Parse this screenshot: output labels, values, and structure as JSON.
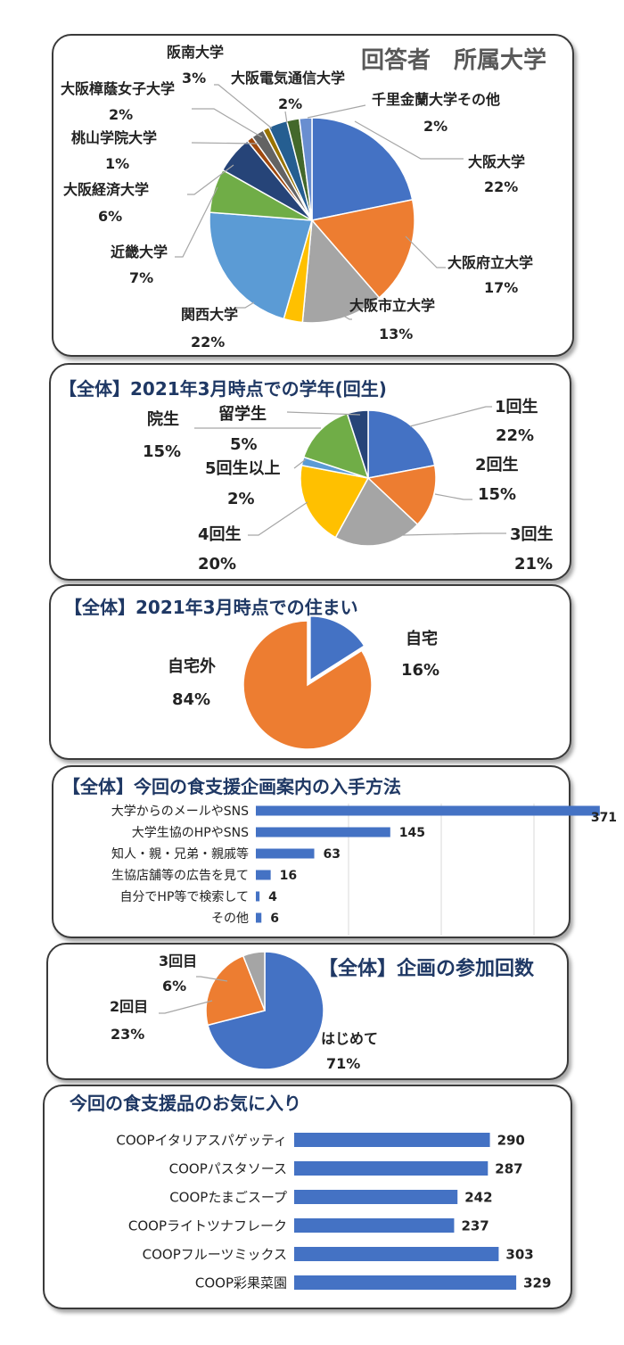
{
  "charts": [
    {
      "type": "pie",
      "title": "回答者　所属大学",
      "colors": [
        "#4472c4",
        "#ed7d31",
        "#a5a5a5",
        "#ffc000",
        "#5b9bd5",
        "#70ad47",
        "#264478",
        "#9e480e",
        "#636363",
        "#997300",
        "#255e91",
        "#43682b",
        "#698ed0"
      ],
      "labels": [
        "大阪大学",
        "大阪府立大学",
        "大阪市立大学",
        "",
        "関西大学",
        "近畿大学",
        "大阪経済大学",
        "桃山学院大学",
        "大阪樟蔭女子大学",
        "",
        "阪南大学",
        "大阪電気通信大学",
        "千里金蘭大学その他"
      ],
      "values": [
        22,
        17,
        13,
        3,
        22,
        7,
        6,
        1,
        2,
        1,
        3,
        2,
        2
      ],
      "pct": [
        "22%",
        "17%",
        "13%",
        "",
        "22%",
        "7%",
        "6%",
        "1%",
        "2%",
        "",
        "3%",
        "2%",
        "2%"
      ]
    },
    {
      "type": "pie",
      "title": "【全体】2021年3月時点での学年(回生)",
      "colors": [
        "#4472c4",
        "#ed7d31",
        "#a5a5a5",
        "#ffc000",
        "#5b9bd5",
        "#70ad47",
        "#264478"
      ],
      "labels": [
        "1回生",
        "2回生",
        "3回生",
        "4回生",
        "5回生以上",
        "院生",
        "留学生"
      ],
      "values": [
        22,
        15,
        21,
        20,
        2,
        15,
        5
      ],
      "pct": [
        "22%",
        "15%",
        "21%",
        "20%",
        "2%",
        "15%",
        "5%"
      ]
    },
    {
      "type": "pie",
      "title": "【全体】2021年3月時点での住まい",
      "colors": [
        "#4472c4",
        "#ed7d31"
      ],
      "labels": [
        "自宅",
        "自宅外"
      ],
      "values": [
        16,
        84
      ],
      "pct": [
        "16%",
        "84%"
      ]
    },
    {
      "type": "bar",
      "title": "【全体】今回の食支援企画案内の入手方法",
      "color": "#4472c4",
      "categories": [
        "大学からのメールやSNS",
        "大学生協のHPやSNS",
        "知人・親・兄弟・親戚等",
        "生協店舗等の広告を見て",
        "自分でHP等で検索して",
        "その他"
      ],
      "values": [
        371,
        145,
        63,
        16,
        4,
        6
      ],
      "xlim": [
        0,
        400
      ]
    },
    {
      "type": "pie",
      "title": "【全体】企画の参加回数",
      "colors": [
        "#4472c4",
        "#ed7d31",
        "#a5a5a5"
      ],
      "labels": [
        "はじめて",
        "2回目",
        "3回目"
      ],
      "values": [
        71,
        23,
        6
      ],
      "pct": [
        "71%",
        "23%",
        "6%"
      ]
    },
    {
      "type": "bar",
      "title": "今回の食支援品のお気に入り",
      "color": "#4472c4",
      "categories": [
        "COOPイタリアスパゲッティ",
        "COOPパスタソース",
        "COOPたまごスープ",
        "COOPライトツナフレーク",
        "COOPフルーツミックス",
        "COOP彩果菜園"
      ],
      "values": [
        290,
        287,
        242,
        237,
        303,
        329
      ],
      "xlim": [
        0,
        350
      ]
    }
  ]
}
